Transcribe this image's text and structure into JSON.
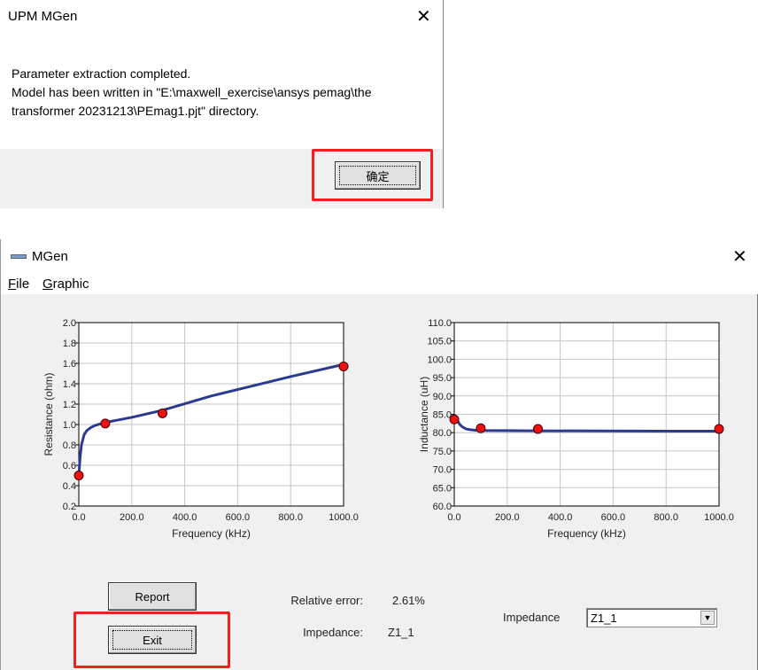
{
  "dialog": {
    "title": "UPM MGen",
    "message_line1": "Parameter extraction completed.",
    "message_line2": "Model has been written in \"E:\\maxwell_exercise\\ansys pemag\\the",
    "message_line3": "transformer 20231213\\PEmag1.pjt\" directory.",
    "ok_label": "确定",
    "close_icon": "close-icon",
    "highlight_color": "#f02020"
  },
  "main": {
    "title": "MGen",
    "menu": [
      {
        "label": "File",
        "key": "F",
        "rest": "ile"
      },
      {
        "label": "Graphic",
        "key": "G",
        "rest": "raphic"
      }
    ],
    "report_label": "Report",
    "exit_label": "Exit",
    "relative_error_label": "Relative error:",
    "relative_error_value": "2.61%",
    "impedance_label": "Impedance:",
    "impedance_value": "Z1_1",
    "impedance_select_label": "Impedance",
    "impedance_select_value": "Z1_1"
  },
  "chart_data": [
    {
      "type": "line",
      "xlabel": "Frequency (kHz)",
      "ylabel": "Resistance (ohm)",
      "xlim": [
        0,
        1000
      ],
      "ylim": [
        0.2,
        2.0
      ],
      "xticks": [
        "0.0",
        "200.0",
        "400.0",
        "600.0",
        "800.0",
        "1000.0"
      ],
      "yticks": [
        "0.2",
        "0.4",
        "0.6",
        "0.8",
        "1.0",
        "1.2",
        "1.4",
        "1.6",
        "1.8",
        "2.0"
      ],
      "grid": true,
      "line_color": "#2b3a8f",
      "marker_color": "#ee1111",
      "measured": {
        "x": [
          0,
          100,
          316,
          1000
        ],
        "y": [
          0.5,
          1.01,
          1.11,
          1.57
        ]
      },
      "fit": {
        "x": [
          0,
          5,
          10,
          20,
          30,
          45,
          60,
          80,
          100,
          200,
          316,
          500,
          800,
          1000
        ],
        "y": [
          0.5,
          0.68,
          0.8,
          0.9,
          0.94,
          0.97,
          0.99,
          1.005,
          1.02,
          1.07,
          1.14,
          1.28,
          1.47,
          1.59
        ]
      }
    },
    {
      "type": "line",
      "xlabel": "Frequency (kHz)",
      "ylabel": "Inductance (uH)",
      "xlim": [
        0,
        1000
      ],
      "ylim": [
        60,
        110
      ],
      "xticks": [
        "0.0",
        "200.0",
        "400.0",
        "600.0",
        "800.0",
        "1000.0"
      ],
      "yticks": [
        "60.0",
        "65.0",
        "70.0",
        "75.0",
        "80.0",
        "85.0",
        "90.0",
        "95.0",
        "100.0",
        "105.0",
        "110.0"
      ],
      "grid": true,
      "line_color": "#2b3a8f",
      "marker_color": "#ee1111",
      "measured": {
        "x": [
          0,
          100,
          316,
          1000
        ],
        "y": [
          83.6,
          81.2,
          81.0,
          81.0
        ]
      },
      "fit": {
        "x": [
          0,
          5,
          10,
          20,
          30,
          45,
          60,
          80,
          100,
          316,
          1000
        ],
        "y": [
          84.8,
          84.5,
          83.6,
          82.3,
          81.6,
          81.0,
          80.8,
          80.65,
          80.6,
          80.5,
          80.4
        ]
      }
    }
  ]
}
